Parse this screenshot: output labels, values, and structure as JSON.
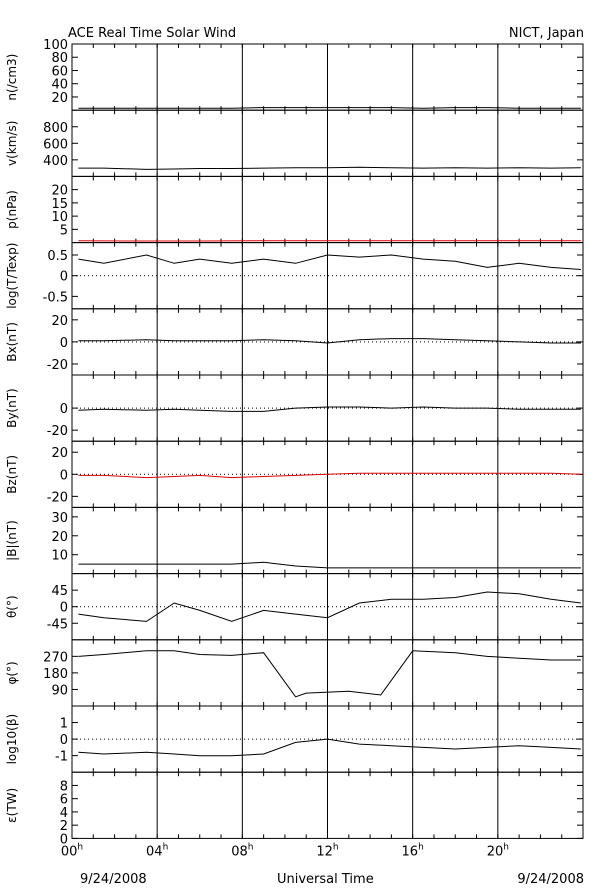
{
  "header": {
    "title": "ACE Real Time Solar Wind",
    "source": "NICT, Japan"
  },
  "footer": {
    "date_left": "9/24/2008",
    "center": "Universal Time",
    "date_right": "9/24/2008"
  },
  "chart_data": {
    "type": "line",
    "xlabel": "Universal Time",
    "x_ticks": [
      {
        "hour": 0,
        "label": "00",
        "sup": "h"
      },
      {
        "hour": 4,
        "label": "04",
        "sup": "h"
      },
      {
        "hour": 8,
        "label": "08",
        "sup": "h"
      },
      {
        "hour": 12,
        "label": "12",
        "sup": "h"
      },
      {
        "hour": 16,
        "label": "16",
        "sup": "h"
      },
      {
        "hour": 20,
        "label": "20",
        "sup": "h"
      }
    ],
    "xlim": [
      0,
      24
    ],
    "panels": [
      {
        "id": "n",
        "ylabel": "n(/cm3)",
        "ylim": [
          0,
          100
        ],
        "ticks": [
          20,
          40,
          60,
          80,
          100
        ],
        "zero_line": false,
        "color": "#000000",
        "series": {
          "x": [
            0.3,
            1.5,
            3.5,
            4.8,
            6.0,
            7.5,
            9.0,
            10.5,
            12.0,
            13.5,
            15.0,
            16.5,
            18.0,
            19.5,
            21.0,
            22.5,
            23.9
          ],
          "y": [
            3,
            3,
            3,
            3,
            3,
            3,
            4,
            4,
            4,
            4,
            4,
            3,
            4,
            4,
            3,
            3,
            3
          ]
        }
      },
      {
        "id": "v",
        "ylabel": "v(km/s)",
        "ylim": [
          200,
          1000
        ],
        "ticks": [
          400,
          600,
          800
        ],
        "zero_line": false,
        "color": "#000000",
        "series": {
          "x": [
            0.3,
            1.5,
            3.5,
            4.8,
            6.0,
            7.5,
            9.0,
            10.5,
            12.0,
            13.5,
            15.0,
            16.5,
            18.0,
            19.5,
            21.0,
            22.5,
            23.9
          ],
          "y": [
            300,
            300,
            285,
            290,
            295,
            295,
            300,
            305,
            305,
            310,
            305,
            300,
            305,
            300,
            305,
            300,
            305
          ]
        }
      },
      {
        "id": "p",
        "ylabel": "p(nPa)",
        "ylim": [
          0,
          25
        ],
        "ticks": [
          5,
          10,
          15,
          20
        ],
        "zero_line": false,
        "color": "#dd0000",
        "series": {
          "x": [
            0.3,
            3.0,
            6.0,
            9.0,
            12.0,
            15.0,
            18.0,
            21.0,
            23.9
          ],
          "y": [
            0.7,
            0.6,
            0.6,
            0.7,
            0.7,
            0.7,
            0.7,
            0.7,
            0.7
          ]
        }
      },
      {
        "id": "t",
        "ylabel": "log(T/Texp)",
        "ylim": [
          -0.8,
          0.8
        ],
        "ticks": [
          -0.5,
          0,
          0.5
        ],
        "zero_line": true,
        "color": "#000000",
        "series": {
          "x": [
            0.3,
            1.5,
            3.5,
            4.8,
            6.0,
            7.5,
            9.0,
            10.5,
            12.0,
            13.5,
            15.0,
            16.5,
            18.0,
            19.5,
            21.0,
            22.5,
            23.9
          ],
          "y": [
            0.4,
            0.3,
            0.5,
            0.3,
            0.4,
            0.3,
            0.4,
            0.3,
            0.5,
            0.45,
            0.5,
            0.4,
            0.35,
            0.2,
            0.3,
            0.2,
            0.15
          ]
        }
      },
      {
        "id": "bx",
        "ylabel": "Bx(nT)",
        "ylim": [
          -30,
          30
        ],
        "ticks": [
          -20,
          0,
          20
        ],
        "zero_line": true,
        "color": "#000000",
        "series": {
          "x": [
            0.3,
            1.5,
            3.5,
            4.8,
            6.0,
            7.5,
            9.0,
            10.5,
            12.0,
            13.5,
            15.0,
            16.5,
            18.0,
            19.5,
            21.0,
            22.5,
            23.9
          ],
          "y": [
            1,
            1,
            2,
            1,
            1,
            1,
            2,
            1,
            -1,
            2,
            3,
            3,
            2,
            1,
            0,
            -1,
            -1
          ]
        }
      },
      {
        "id": "by",
        "ylabel": "By(nT)",
        "ylim": [
          -30,
          30
        ],
        "ticks": [
          -20,
          0
        ],
        "zero_line": true,
        "color": "#000000",
        "series": {
          "x": [
            0.3,
            1.5,
            3.5,
            4.8,
            6.0,
            7.5,
            9.0,
            10.5,
            12.0,
            13.5,
            15.0,
            16.5,
            18.0,
            19.5,
            21.0,
            22.5,
            23.9
          ],
          "y": [
            -2,
            -1,
            -2,
            -1,
            -2,
            -3,
            -3,
            0,
            1,
            1,
            0,
            1,
            0,
            0,
            -1,
            -1,
            -1
          ]
        }
      },
      {
        "id": "bz",
        "ylabel": "Bz(nT)",
        "ylim": [
          -30,
          30
        ],
        "ticks": [
          -20,
          0,
          20
        ],
        "zero_line": true,
        "color": "#dd0000",
        "series": {
          "x": [
            0.3,
            1.5,
            3.5,
            4.8,
            6.0,
            7.5,
            9.0,
            10.5,
            12.0,
            13.5,
            15.0,
            16.5,
            18.0,
            19.5,
            21.0,
            22.5,
            23.9
          ],
          "y": [
            -1,
            -1,
            -3,
            -2,
            -1,
            -3,
            -2,
            -1,
            0,
            1,
            1,
            1,
            1,
            1,
            1,
            1,
            0
          ]
        }
      },
      {
        "id": "b",
        "ylabel": "|B|(nT)",
        "ylim": [
          0,
          35
        ],
        "ticks": [
          10,
          20,
          30
        ],
        "zero_line": false,
        "color": "#000000",
        "series": {
          "x": [
            0.3,
            1.5,
            3.5,
            4.8,
            6.0,
            7.5,
            9.0,
            10.5,
            12.0,
            13.5,
            15.0,
            16.5,
            18.0,
            19.5,
            21.0,
            22.5,
            23.9
          ],
          "y": [
            5,
            5,
            5,
            5,
            5,
            5,
            6,
            4,
            3,
            3,
            3,
            3,
            3,
            3,
            3,
            3,
            3
          ]
        }
      },
      {
        "id": "theta",
        "ylabel": "θ(°)",
        "ylim": [
          -90,
          90
        ],
        "ticks": [
          -45,
          0,
          45
        ],
        "zero_line": true,
        "color": "#000000",
        "series": {
          "x": [
            0.3,
            1.5,
            3.5,
            4.8,
            6.0,
            7.5,
            9.0,
            10.5,
            12.0,
            13.5,
            15.0,
            16.5,
            18.0,
            19.5,
            21.0,
            22.5,
            23.9
          ],
          "y": [
            -20,
            -30,
            -40,
            10,
            -10,
            -40,
            -10,
            -20,
            -30,
            10,
            20,
            20,
            25,
            40,
            35,
            20,
            10
          ]
        }
      },
      {
        "id": "phi",
        "ylabel": "φ(°)",
        "ylim": [
          0,
          360
        ],
        "ticks": [
          90,
          180,
          270
        ],
        "zero_line": false,
        "color": "#000000",
        "series": {
          "x": [
            0.3,
            1.5,
            3.5,
            4.8,
            6.0,
            7.5,
            9.0,
            10.5,
            11.0,
            13.0,
            14.5,
            16.0,
            18.0,
            19.5,
            21.0,
            22.5,
            23.9
          ],
          "y": [
            270,
            280,
            300,
            300,
            280,
            275,
            290,
            50,
            70,
            80,
            60,
            300,
            290,
            270,
            260,
            250,
            250
          ]
        }
      },
      {
        "id": "beta",
        "ylabel": "log10(β)",
        "ylim": [
          -2,
          2
        ],
        "ticks": [
          -1,
          0,
          1
        ],
        "zero_line": true,
        "color": "#000000",
        "series": {
          "x": [
            0.3,
            1.5,
            3.5,
            4.8,
            6.0,
            7.5,
            9.0,
            10.5,
            12.0,
            13.5,
            15.0,
            16.5,
            18.0,
            19.5,
            21.0,
            22.5,
            23.9
          ],
          "y": [
            -0.8,
            -0.9,
            -0.8,
            -0.9,
            -1.0,
            -1.0,
            -0.9,
            -0.2,
            0.0,
            -0.3,
            -0.4,
            -0.5,
            -0.6,
            -0.5,
            -0.4,
            -0.5,
            -0.6
          ]
        }
      },
      {
        "id": "eps",
        "ylabel": "ε(TW)",
        "ylim": [
          0,
          10
        ],
        "ticks": [
          0,
          2,
          4,
          6,
          8
        ],
        "zero_line": false,
        "color": "#000000",
        "series": {
          "x": [],
          "y": []
        }
      }
    ]
  }
}
